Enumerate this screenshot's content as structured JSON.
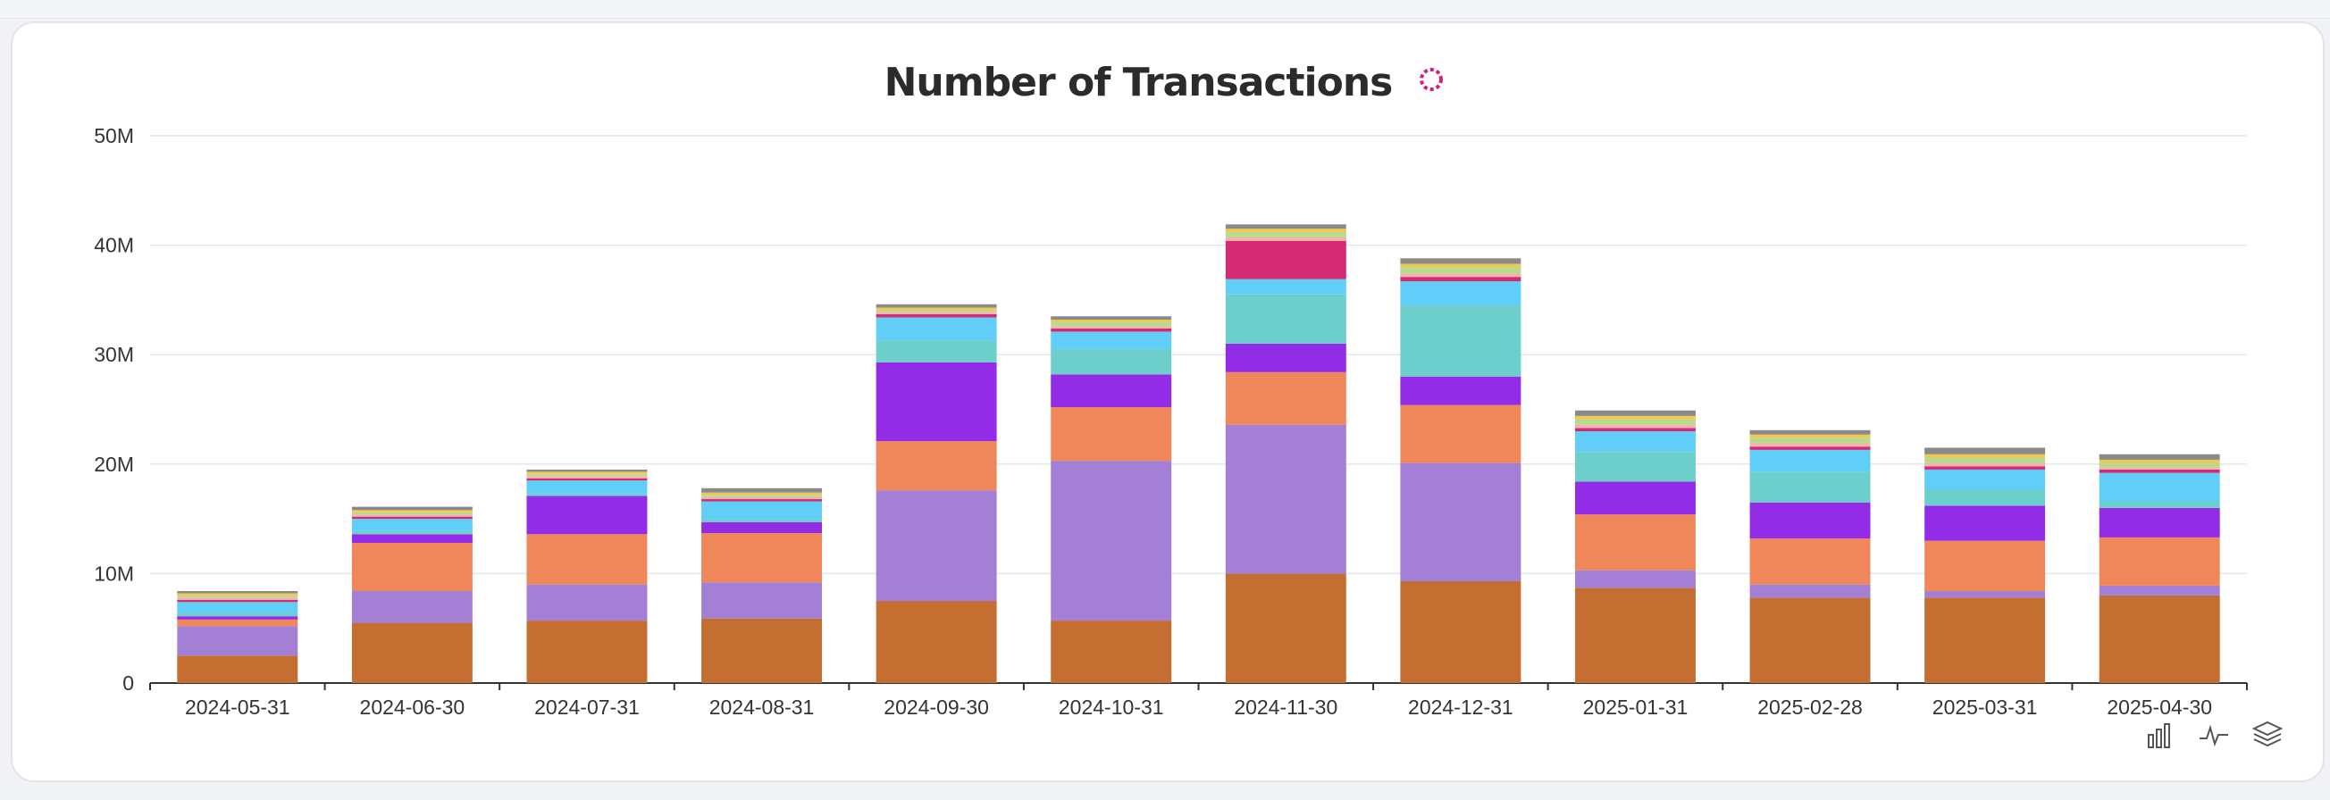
{
  "title": "Number of Transactions",
  "icons": {
    "title_icon": "loading-ring-icon",
    "toolbar": [
      "bar-chart-icon",
      "line-chart-icon",
      "stack-layers-icon"
    ]
  },
  "colors": {
    "title_icon": "#d81b7a",
    "series": [
      "#c46e31",
      "#a380d6",
      "#ef875b",
      "#922ce6",
      "#6ccfcb",
      "#61cef7",
      "#d42a74",
      "#f2b2b0",
      "#b8dc8b",
      "#f2c64f",
      "#8a8a8a"
    ]
  },
  "chart_data": {
    "type": "bar",
    "stacked": true,
    "categories": [
      "2024-05-31",
      "2024-06-30",
      "2024-07-31",
      "2024-08-31",
      "2024-09-30",
      "2024-10-31",
      "2024-11-30",
      "2024-12-31",
      "2025-01-31",
      "2025-02-28",
      "2025-03-31",
      "2025-04-30"
    ],
    "y_ticks": [
      "0",
      "10M",
      "20M",
      "30M",
      "40M",
      "50M"
    ],
    "ylim": [
      0,
      50000000
    ],
    "grid": true,
    "legend": "none",
    "series": [
      {
        "values": [
          2.5,
          5.5,
          5.7,
          5.9,
          7.5,
          5.7,
          10.0,
          9.3,
          8.7,
          7.8,
          7.8,
          8.0
        ]
      },
      {
        "values": [
          2.7,
          2.9,
          3.3,
          3.3,
          10.1,
          14.6,
          13.6,
          10.8,
          1.6,
          1.2,
          0.6,
          0.9
        ]
      },
      {
        "values": [
          0.6,
          4.4,
          4.6,
          4.5,
          4.5,
          4.9,
          4.8,
          5.3,
          5.1,
          4.2,
          4.6,
          4.4
        ]
      },
      {
        "values": [
          0.3,
          0.8,
          3.5,
          1.0,
          7.2,
          3.0,
          2.6,
          2.6,
          3.0,
          3.3,
          3.2,
          2.7
        ]
      },
      {
        "values": [
          0.3,
          0.3,
          0.2,
          0.3,
          2.0,
          2.3,
          4.5,
          6.5,
          2.7,
          2.8,
          1.5,
          0.6
        ]
      },
      {
        "values": [
          1.0,
          1.1,
          1.2,
          1.6,
          2.1,
          1.6,
          1.4,
          2.2,
          1.9,
          2.0,
          1.8,
          2.6
        ]
      },
      {
        "values": [
          0.2,
          0.2,
          0.2,
          0.2,
          0.3,
          0.3,
          3.5,
          0.4,
          0.3,
          0.3,
          0.3,
          0.3
        ]
      },
      {
        "values": [
          0.2,
          0.2,
          0.2,
          0.2,
          0.2,
          0.2,
          0.3,
          0.3,
          0.3,
          0.3,
          0.3,
          0.2
        ]
      },
      {
        "values": [
          0.2,
          0.2,
          0.2,
          0.2,
          0.2,
          0.4,
          0.5,
          0.6,
          0.5,
          0.5,
          0.5,
          0.4
        ]
      },
      {
        "values": [
          0.2,
          0.2,
          0.2,
          0.2,
          0.2,
          0.2,
          0.3,
          0.3,
          0.3,
          0.3,
          0.3,
          0.3
        ]
      },
      {
        "values": [
          0.2,
          0.3,
          0.2,
          0.4,
          0.3,
          0.3,
          0.4,
          0.5,
          0.5,
          0.4,
          0.6,
          0.5
        ]
      }
    ],
    "value_unit": "M"
  }
}
